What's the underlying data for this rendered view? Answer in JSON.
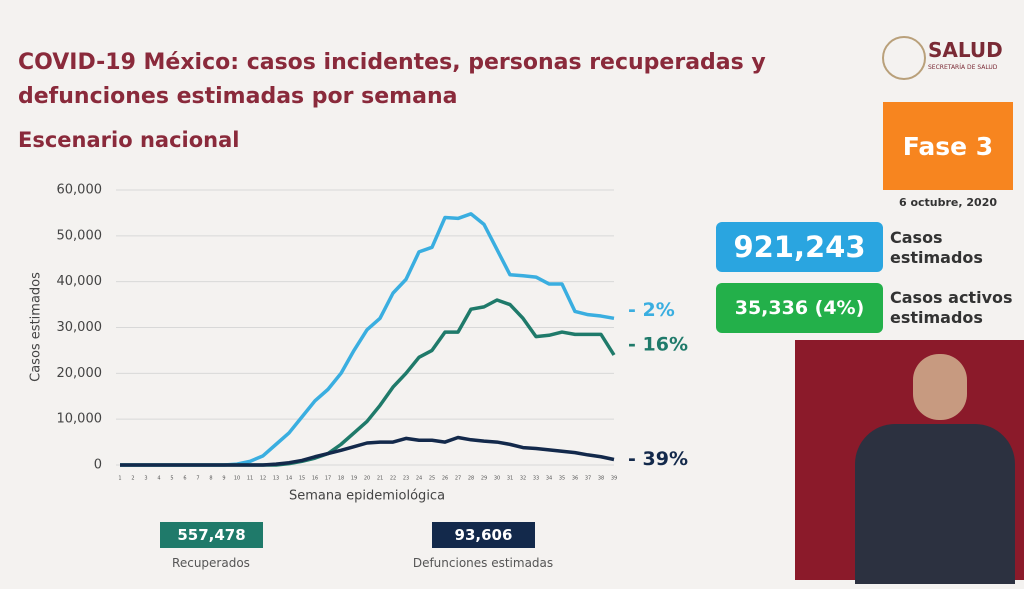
{
  "chart_data": {
    "type": "line",
    "title": "COVID-19 México: casos incidentes, personas recuperadas y defunciones estimadas por semana",
    "subtitle": "Escenario nacional",
    "y_label": "Casos estimados",
    "x_label": "Semana epidemiológica",
    "categories": [
      "1",
      "2",
      "3",
      "4",
      "5",
      "6",
      "7",
      "8",
      "9",
      "10",
      "11",
      "12",
      "13",
      "14",
      "15",
      "16",
      "17",
      "18",
      "19",
      "20",
      "21",
      "22",
      "23",
      "24",
      "25",
      "26",
      "27",
      "28",
      "29",
      "30",
      "31",
      "32",
      "33",
      "34",
      "35",
      "36",
      "37",
      "38",
      "39"
    ],
    "series": [
      {
        "color": "#3aaee0",
        "label": "- 2%",
        "values": [
          0,
          0,
          0,
          0,
          0,
          0,
          0,
          0,
          0,
          200,
          800,
          2000,
          4500,
          7000,
          10500,
          14000,
          16500,
          20000,
          25000,
          29500,
          32000,
          37500,
          40500,
          46500,
          47500,
          54000,
          53800,
          54800,
          52500,
          47000,
          41500,
          41300,
          41000,
          39500,
          39500,
          33500,
          32800,
          32500,
          32000
        ]
      },
      {
        "color": "#1f7a6a",
        "label": "- 16%",
        "values": [
          0,
          0,
          0,
          0,
          0,
          0,
          0,
          0,
          0,
          0,
          0,
          0,
          0,
          300,
          800,
          1500,
          2500,
          4500,
          7000,
          9500,
          13000,
          17000,
          20000,
          23500,
          25000,
          29000,
          29000,
          34000,
          34500,
          36000,
          35000,
          32000,
          28000,
          28300,
          29000,
          28500,
          28500,
          28500,
          24000
        ]
      },
      {
        "color": "#13294b",
        "label": "- 39%",
        "values": [
          0,
          0,
          0,
          0,
          0,
          0,
          0,
          0,
          0,
          0,
          0,
          0,
          200,
          500,
          1000,
          1800,
          2500,
          3200,
          4000,
          4800,
          5000,
          5000,
          5800,
          5400,
          5400,
          5000,
          6000,
          5500,
          5200,
          5000,
          4500,
          3800,
          3600,
          3300,
          3000,
          2700,
          2200,
          1800,
          1200
        ]
      }
    ],
    "ylim": [
      0,
      60000
    ],
    "yticks": [
      0,
      {
        "value": 10000,
        "label": "10,000"
      },
      {
        "value": 20000,
        "label": "20,000"
      },
      {
        "value": 30000,
        "label": "30,000"
      },
      {
        "value": 40000,
        "label": "40,000"
      },
      {
        "value": 50000,
        "label": "50,000"
      },
      {
        "value": 60000,
        "label": "60,000"
      }
    ],
    "grid": true
  },
  "logo": {
    "name": "SALUD",
    "sub": "SECRETARÍA DE SALUD"
  },
  "phase": {
    "label": "Fase 3",
    "date": "6 octubre, 2020"
  },
  "stats": {
    "cases": {
      "value": "921,243",
      "label": "Casos estimados"
    },
    "active": {
      "value": "35,336 (4%)",
      "label": "Casos activos estimados"
    },
    "recovered": {
      "value": "557,478",
      "label": "Recuperados"
    },
    "deaths": {
      "value": "93,606",
      "label": "Defunciones estimadas"
    }
  }
}
